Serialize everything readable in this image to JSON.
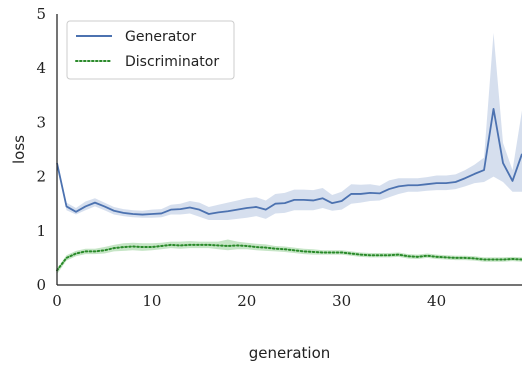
{
  "chart_data": {
    "type": "line",
    "xlabel": "generation",
    "ylabel": "loss",
    "xlim": [
      0,
      49
    ],
    "ylim": [
      0,
      5
    ],
    "x_ticks": [
      0,
      10,
      20,
      30,
      40
    ],
    "y_ticks": [
      0,
      1,
      2,
      3,
      4,
      5
    ],
    "grid": false,
    "legend_position": "top-left",
    "x": [
      0,
      1,
      2,
      3,
      4,
      5,
      6,
      7,
      8,
      9,
      10,
      11,
      12,
      13,
      14,
      15,
      16,
      17,
      18,
      19,
      20,
      21,
      22,
      23,
      24,
      25,
      26,
      27,
      28,
      29,
      30,
      31,
      32,
      33,
      34,
      35,
      36,
      37,
      38,
      39,
      40,
      41,
      42,
      43,
      44,
      45,
      46,
      47,
      48,
      49
    ],
    "series": [
      {
        "name": "Generator",
        "color": "#4c72b0",
        "band_color": "#c8d4e8",
        "style": "solid",
        "values": [
          2.25,
          1.45,
          1.35,
          1.45,
          1.52,
          1.45,
          1.37,
          1.33,
          1.31,
          1.3,
          1.31,
          1.32,
          1.39,
          1.4,
          1.43,
          1.39,
          1.31,
          1.34,
          1.36,
          1.39,
          1.42,
          1.44,
          1.39,
          1.5,
          1.51,
          1.57,
          1.57,
          1.56,
          1.6,
          1.51,
          1.55,
          1.68,
          1.68,
          1.7,
          1.69,
          1.77,
          1.82,
          1.84,
          1.84,
          1.86,
          1.88,
          1.88,
          1.9,
          1.97,
          2.05,
          2.12,
          3.25,
          2.25,
          1.92,
          2.42
        ],
        "lower": [
          2.25,
          1.38,
          1.3,
          1.38,
          1.45,
          1.38,
          1.3,
          1.27,
          1.25,
          1.24,
          1.24,
          1.25,
          1.3,
          1.3,
          1.32,
          1.26,
          1.2,
          1.2,
          1.2,
          1.22,
          1.24,
          1.27,
          1.22,
          1.32,
          1.33,
          1.38,
          1.38,
          1.38,
          1.42,
          1.37,
          1.39,
          1.5,
          1.52,
          1.55,
          1.56,
          1.62,
          1.68,
          1.72,
          1.72,
          1.74,
          1.75,
          1.75,
          1.77,
          1.82,
          1.88,
          1.9,
          2.0,
          1.9,
          1.72,
          1.72
        ],
        "upper": [
          2.25,
          1.52,
          1.42,
          1.54,
          1.6,
          1.52,
          1.44,
          1.4,
          1.38,
          1.37,
          1.39,
          1.4,
          1.48,
          1.5,
          1.55,
          1.52,
          1.44,
          1.48,
          1.52,
          1.56,
          1.6,
          1.62,
          1.56,
          1.68,
          1.7,
          1.76,
          1.76,
          1.75,
          1.79,
          1.66,
          1.72,
          1.86,
          1.85,
          1.86,
          1.83,
          1.93,
          1.97,
          1.97,
          1.97,
          1.99,
          2.02,
          2.02,
          2.04,
          2.12,
          2.22,
          2.35,
          4.65,
          2.62,
          2.12,
          3.22
        ]
      },
      {
        "name": "Discriminator",
        "color": "#2a8a2a",
        "band_color": "#b3dcb3",
        "style": "dotted",
        "values": [
          0.27,
          0.5,
          0.58,
          0.62,
          0.62,
          0.64,
          0.68,
          0.7,
          0.71,
          0.7,
          0.7,
          0.72,
          0.74,
          0.73,
          0.74,
          0.74,
          0.74,
          0.73,
          0.72,
          0.73,
          0.72,
          0.7,
          0.69,
          0.67,
          0.66,
          0.64,
          0.62,
          0.61,
          0.6,
          0.6,
          0.6,
          0.58,
          0.56,
          0.55,
          0.55,
          0.55,
          0.56,
          0.53,
          0.52,
          0.54,
          0.52,
          0.51,
          0.5,
          0.5,
          0.49,
          0.47,
          0.47,
          0.47,
          0.48,
          0.47
        ],
        "lower": [
          0.2,
          0.45,
          0.53,
          0.57,
          0.57,
          0.58,
          0.62,
          0.63,
          0.64,
          0.63,
          0.64,
          0.66,
          0.68,
          0.67,
          0.68,
          0.68,
          0.68,
          0.66,
          0.64,
          0.66,
          0.66,
          0.64,
          0.63,
          0.62,
          0.61,
          0.59,
          0.57,
          0.56,
          0.56,
          0.56,
          0.56,
          0.54,
          0.52,
          0.51,
          0.51,
          0.51,
          0.52,
          0.49,
          0.48,
          0.5,
          0.48,
          0.47,
          0.46,
          0.46,
          0.45,
          0.43,
          0.43,
          0.43,
          0.44,
          0.43
        ],
        "upper": [
          0.3,
          0.55,
          0.63,
          0.67,
          0.67,
          0.7,
          0.74,
          0.77,
          0.78,
          0.77,
          0.77,
          0.78,
          0.8,
          0.8,
          0.81,
          0.8,
          0.8,
          0.8,
          0.84,
          0.8,
          0.78,
          0.76,
          0.75,
          0.72,
          0.71,
          0.69,
          0.67,
          0.66,
          0.64,
          0.64,
          0.64,
          0.62,
          0.6,
          0.59,
          0.59,
          0.59,
          0.6,
          0.57,
          0.56,
          0.58,
          0.56,
          0.55,
          0.54,
          0.54,
          0.53,
          0.51,
          0.51,
          0.51,
          0.52,
          0.51
        ]
      }
    ]
  }
}
